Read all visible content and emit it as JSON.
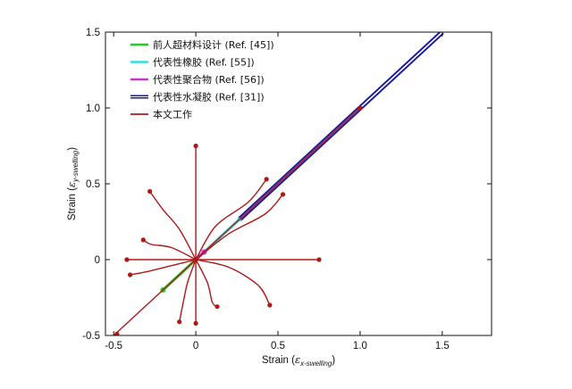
{
  "chart_data": {
    "type": "line",
    "xlabel": "Strain (εx-swelling)",
    "ylabel": "Strain (εy-swelling)",
    "xlabel_parts": {
      "main": "Strain (",
      "symbol": "ε",
      "subscript": "x-swelling",
      "close": ")"
    },
    "ylabel_parts": {
      "main": "Strain (",
      "symbol": "ε",
      "subscript": "y-swelling",
      "close": ")"
    },
    "xlim": [
      -0.55,
      1.8
    ],
    "ylim": [
      -0.5,
      1.5
    ],
    "xticks": [
      -0.5,
      0,
      0.5,
      1.0,
      1.5
    ],
    "xtick_labels": [
      "-0.5",
      "0",
      "0.5",
      "1.0",
      "1.5"
    ],
    "yticks": [
      -0.5,
      0,
      0.5,
      1.0,
      1.5
    ],
    "ytick_labels": [
      "-0.5",
      "0",
      "0.5",
      "1.0",
      "1.5"
    ],
    "grid": false,
    "legend_position": "top-left",
    "series": [
      {
        "name": "前人超材料设计 (Ref. [45])",
        "color": "#22cc22",
        "curves": [
          {
            "points": [
              [
                -0.2,
                -0.2
              ],
              [
                0.0,
                0.0
              ]
            ]
          }
        ],
        "markers": [
          [
            -0.2,
            -0.2
          ]
        ]
      },
      {
        "name": "代表性橡胶 (Ref. [55])",
        "color": "#33dddd",
        "curves": [
          {
            "points": [
              [
                0.0,
                0.0
              ],
              [
                0.27,
                0.27
              ]
            ]
          }
        ],
        "markers": [
          [
            0.27,
            0.27
          ]
        ]
      },
      {
        "name": "代表性聚合物 (Ref. [56])",
        "color": "#cc33cc",
        "curves": [
          {
            "points": [
              [
                0.0,
                0.0
              ],
              [
                0.05,
                0.05
              ]
            ]
          }
        ],
        "markers": [
          [
            0.05,
            0.05
          ]
        ]
      },
      {
        "name": "代表性水凝胶 (Ref. [31])",
        "color": "#1a1aa0",
        "curves": [
          {
            "points": [
              [
                0.27,
                0.27
              ],
              [
                1.5,
                1.5
              ]
            ]
          }
        ],
        "markers": []
      },
      {
        "name": "本文工作",
        "color": "#b01818",
        "curves": [
          {
            "points": [
              [
                -0.5,
                -0.5
              ],
              [
                0.0,
                0.0
              ]
            ]
          },
          {
            "points": [
              [
                0.0,
                0.0
              ],
              [
                1.0,
                1.0
              ]
            ]
          },
          {
            "points": [
              [
                0.0,
                0.0
              ],
              [
                0.75,
                0.0
              ]
            ]
          },
          {
            "points": [
              [
                0.0,
                0.0
              ],
              [
                -0.42,
                0.0
              ]
            ]
          },
          {
            "points": [
              [
                0.0,
                0.0
              ],
              [
                0.0,
                0.75
              ]
            ]
          },
          {
            "points": [
              [
                0.0,
                0.0
              ],
              [
                0.0,
                -0.42
              ]
            ]
          },
          {
            "points": [
              [
                0.0,
                0.0
              ],
              [
                0.12,
                0.22
              ],
              [
                0.32,
                0.38
              ],
              [
                0.43,
                0.53
              ]
            ]
          },
          {
            "points": [
              [
                0.0,
                0.0
              ],
              [
                0.2,
                0.17
              ],
              [
                0.42,
                0.3
              ],
              [
                0.53,
                0.43
              ]
            ]
          },
          {
            "points": [
              [
                0.0,
                0.0
              ],
              [
                -0.1,
                0.2
              ],
              [
                -0.2,
                0.33
              ],
              [
                -0.28,
                0.45
              ]
            ]
          },
          {
            "points": [
              [
                0.0,
                0.0
              ],
              [
                -0.15,
                0.08
              ],
              [
                -0.27,
                0.1
              ],
              [
                -0.32,
                0.13
              ]
            ]
          },
          {
            "points": [
              [
                0.0,
                0.0
              ],
              [
                -0.15,
                -0.04
              ],
              [
                -0.3,
                -0.08
              ],
              [
                -0.4,
                -0.1
              ]
            ]
          },
          {
            "points": [
              [
                0.0,
                0.0
              ],
              [
                -0.05,
                -0.15
              ],
              [
                -0.08,
                -0.3
              ],
              [
                -0.1,
                -0.41
              ]
            ]
          },
          {
            "points": [
              [
                0.0,
                0.0
              ],
              [
                0.07,
                -0.15
              ],
              [
                0.1,
                -0.28
              ],
              [
                0.13,
                -0.31
              ]
            ]
          },
          {
            "points": [
              [
                0.0,
                0.0
              ],
              [
                0.2,
                -0.05
              ],
              [
                0.38,
                -0.17
              ],
              [
                0.45,
                -0.3
              ]
            ]
          }
        ],
        "markers": [
          [
            1.0,
            1.0
          ],
          [
            0.75,
            0.0
          ],
          [
            -0.42,
            0.0
          ],
          [
            0.0,
            0.75
          ],
          [
            0.0,
            -0.42
          ],
          [
            0.43,
            0.53
          ],
          [
            0.53,
            0.43
          ],
          [
            -0.28,
            0.45
          ],
          [
            -0.32,
            0.13
          ],
          [
            -0.4,
            -0.1
          ],
          [
            -0.1,
            -0.41
          ],
          [
            0.13,
            -0.31
          ],
          [
            0.45,
            -0.3
          ],
          [
            -0.48,
            -0.49
          ],
          [
            0.0,
            0.0
          ]
        ]
      }
    ]
  }
}
